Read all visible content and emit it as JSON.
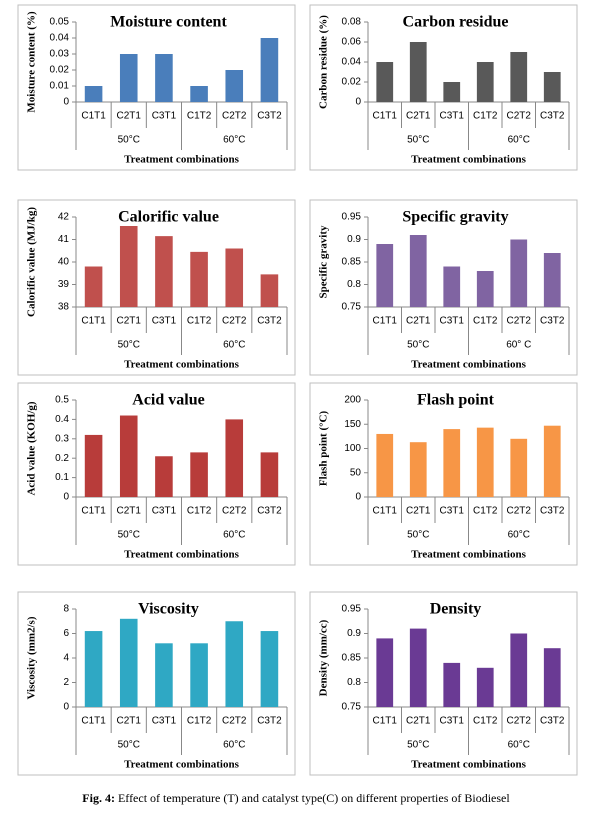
{
  "chart_data": [
    {
      "type": "bar",
      "title": "Moisture content",
      "ylabel": "Moisture content (%)",
      "xlabel": "Treatment combinations",
      "color": "#4a7ebb",
      "groups": [
        {
          "label": "50°C",
          "categories": [
            "C1T1",
            "C2T1",
            "C3T1"
          ]
        },
        {
          "label": "60°C",
          "categories": [
            "C1T2",
            "C2T2",
            "C3T2"
          ]
        }
      ],
      "values": [
        0.01,
        0.03,
        0.03,
        0.01,
        0.02,
        0.04
      ],
      "ylim": [
        0,
        0.05
      ],
      "yticks": [
        0,
        0.01,
        0.02,
        0.03,
        0.04,
        0.05
      ]
    },
    {
      "type": "bar",
      "title": "Carbon residue",
      "ylabel": "Carbon residue (%)",
      "xlabel": "Treatment combinations",
      "color": "#595959",
      "groups": [
        {
          "label": "50°C",
          "categories": [
            "C1T1",
            "C2T1",
            "C3T1"
          ]
        },
        {
          "label": "60°C",
          "categories": [
            "C1T2",
            "C2T2",
            "C3T2"
          ]
        }
      ],
      "values": [
        0.04,
        0.06,
        0.02,
        0.04,
        0.05,
        0.03
      ],
      "ylim": [
        0,
        0.08
      ],
      "yticks": [
        0,
        0.02,
        0.04,
        0.06,
        0.08
      ]
    },
    {
      "type": "bar",
      "title": "Calorific value",
      "ylabel": "Calorific value (MJ/kg)",
      "xlabel": "Treatment combinations",
      "color": "#c0504d",
      "groups": [
        {
          "label": "50°C",
          "categories": [
            "C1T1",
            "C2T1",
            "C3T1"
          ]
        },
        {
          "label": "60°C",
          "categories": [
            "C1T2",
            "C2T2",
            "C3T2"
          ]
        }
      ],
      "values": [
        39.8,
        41.6,
        41.15,
        40.45,
        40.6,
        39.45
      ],
      "ylim": [
        38,
        42
      ],
      "yticks": [
        38,
        39,
        40,
        41,
        42
      ]
    },
    {
      "type": "bar",
      "title": "Specific gravity",
      "ylabel": "Specific gravity",
      "xlabel": "Treatment  combinations",
      "color": "#8064a2",
      "groups": [
        {
          "label": "50°C",
          "categories": [
            "C1T1",
            "C2T1",
            "C3T1"
          ]
        },
        {
          "label": "60° C",
          "categories": [
            "C1T2",
            "C2T2",
            "C3T2"
          ]
        }
      ],
      "values": [
        0.89,
        0.91,
        0.84,
        0.83,
        0.9,
        0.87
      ],
      "ylim": [
        0.75,
        0.95
      ],
      "yticks": [
        0.75,
        0.8,
        0.85,
        0.9,
        0.95
      ]
    },
    {
      "type": "bar",
      "title": "Acid value",
      "ylabel": "Acid value (KOH/g)",
      "xlabel": "Treatment combinations",
      "color": "#b83c3a",
      "groups": [
        {
          "label": "50°C",
          "categories": [
            "C1T1",
            "C2T1",
            "C3T1"
          ]
        },
        {
          "label": "60°C",
          "categories": [
            "C1T2",
            "C2T2",
            "C3T2"
          ]
        }
      ],
      "values": [
        0.32,
        0.42,
        0.21,
        0.23,
        0.4,
        0.23
      ],
      "ylim": [
        0,
        0.5
      ],
      "yticks": [
        0,
        0.1,
        0.2,
        0.3,
        0.4,
        0.5
      ]
    },
    {
      "type": "bar",
      "title": "Flash point",
      "ylabel": "Flash point (°C)",
      "xlabel": "Treatment combinations",
      "color": "#f79646",
      "groups": [
        {
          "label": "50°C",
          "categories": [
            "C1T1",
            "C2T1",
            "C3T1"
          ]
        },
        {
          "label": "60°C",
          "categories": [
            "C1T2",
            "C2T2",
            "C3T2"
          ]
        }
      ],
      "values": [
        130,
        113,
        140,
        143,
        120,
        147
      ],
      "ylim": [
        0,
        200
      ],
      "yticks": [
        0,
        50,
        100,
        150,
        200
      ]
    },
    {
      "type": "bar",
      "title": "Viscosity",
      "ylabel": "Viscosity (mm2/s)",
      "xlabel": "Treatment combinations",
      "color": "#2fa8c4",
      "groups": [
        {
          "label": "50°C",
          "categories": [
            "C1T1",
            "C2T1",
            "C3T1"
          ]
        },
        {
          "label": "60°C",
          "categories": [
            "C1T2",
            "C2T2",
            "C3T2"
          ]
        }
      ],
      "values": [
        6.2,
        7.2,
        5.2,
        5.2,
        7,
        6.2
      ],
      "ylim": [
        0,
        8
      ],
      "yticks": [
        0,
        2,
        4,
        6,
        8
      ]
    },
    {
      "type": "bar",
      "title": "Density",
      "ylabel": "Density (mm/cc)",
      "xlabel": "Treatment combinations",
      "color": "#6a3a94",
      "groups": [
        {
          "label": "50°C",
          "categories": [
            "C1T1",
            "C2T1",
            "C3T1"
          ]
        },
        {
          "label": "60°C",
          "categories": [
            "C1T2",
            "C2T2",
            "C3T2"
          ]
        }
      ],
      "values": [
        0.89,
        0.91,
        0.84,
        0.83,
        0.9,
        0.87
      ],
      "ylim": [
        0.75,
        0.95
      ],
      "yticks": [
        0.75,
        0.8,
        0.85,
        0.9,
        0.95
      ]
    }
  ],
  "caption": {
    "label": "Fig. 4:",
    "text": "Effect of temperature (T) and catalyst type(C) on different properties of Biodiesel"
  }
}
